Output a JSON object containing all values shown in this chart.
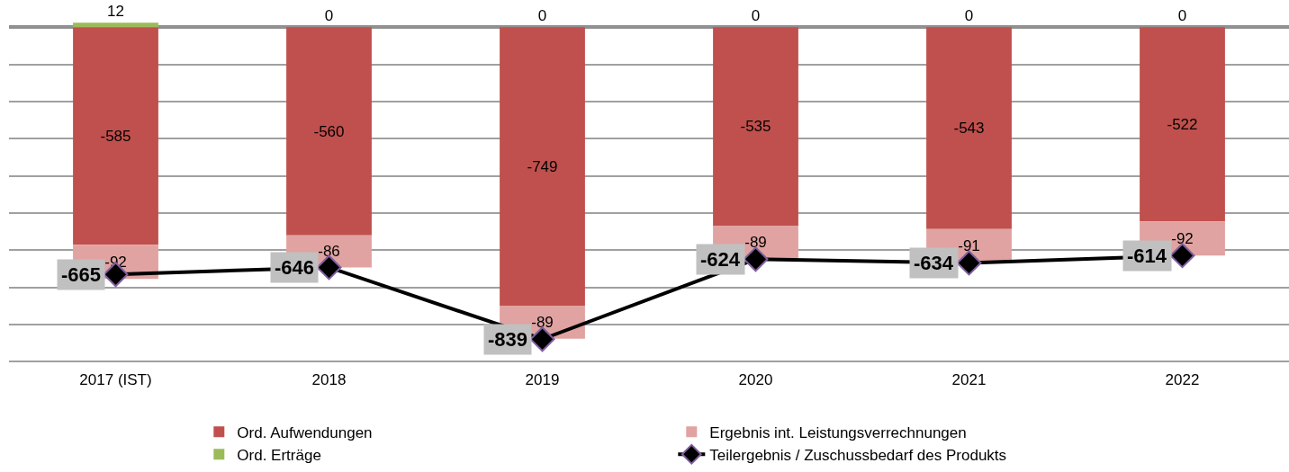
{
  "chart_data": {
    "type": "bar",
    "stacked": true,
    "categories": [
      "2017 (IST)",
      "2018",
      "2019",
      "2020",
      "2021",
      "2022"
    ],
    "series": [
      {
        "name": "Ord. Aufwendungen",
        "color": "#c0504d",
        "values": [
          -585,
          -560,
          -749,
          -535,
          -543,
          -522
        ]
      },
      {
        "name": "Ergebnis int. Leistungsverrechnungen",
        "color": "#e0a3a1",
        "values": [
          -92,
          -86,
          -89,
          -89,
          -91,
          -92
        ]
      },
      {
        "name": "Ord. Erträge",
        "color": "#9bbb59",
        "values": [
          12,
          0,
          0,
          0,
          0,
          0
        ]
      },
      {
        "name": "Teilergebnis / Zuschussbedarf des Produkts",
        "type": "line",
        "color": "#000000",
        "marker": "diamond",
        "values": [
          -665,
          -646,
          -839,
          -624,
          -634,
          -614
        ]
      }
    ],
    "data_labels": true,
    "tick_labels": "x",
    "grid": "y",
    "legend": "bottom"
  }
}
